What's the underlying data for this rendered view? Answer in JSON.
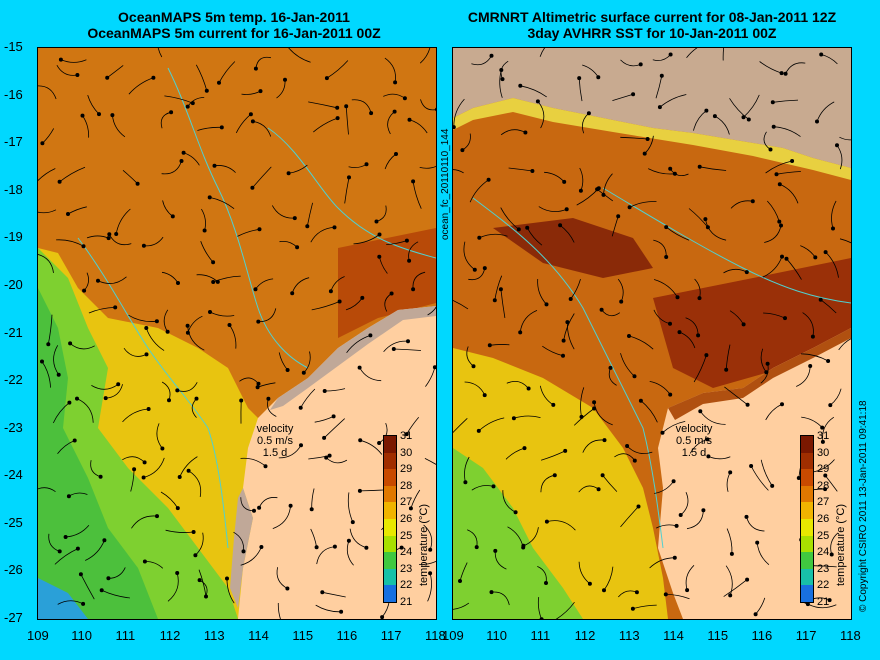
{
  "titles": {
    "left_line1": "OceanMAPS 5m temp. 16-Jan-2011",
    "left_line2": "OceanMAPS 5m current for 16-Jan-2011 00Z",
    "right_line1": "CMRNRT Altimetric surface current for 08-Jan-2011 12Z",
    "right_line2": "3day AVHRR SST for 10-Jan-2011 00Z"
  },
  "axes": {
    "lat_ticks": [
      "-15",
      "-16",
      "-17",
      "-18",
      "-19",
      "-20",
      "-21",
      "-22",
      "-23",
      "-24",
      "-25",
      "-26",
      "-27"
    ],
    "lon_ticks_left": [
      "109",
      "110",
      "111",
      "112",
      "113",
      "114",
      "115",
      "116",
      "117",
      "118"
    ],
    "lon_ticks_right": [
      "109",
      "110",
      "111",
      "112",
      "113",
      "114",
      "115",
      "116",
      "117",
      "118"
    ],
    "lon_range": [
      109,
      118
    ],
    "lat_range": [
      -27,
      -15
    ]
  },
  "legend": {
    "title": "temperature (°C)",
    "ticks": [
      "31",
      "30",
      "29",
      "28",
      "27",
      "26",
      "25",
      "24",
      "23",
      "22",
      "21"
    ],
    "colors": [
      "#7a1800",
      "#a02e00",
      "#c84a00",
      "#e07800",
      "#f0b400",
      "#e8e800",
      "#a8e000",
      "#40c840",
      "#18c0a8",
      "#1870e0",
      "#101890"
    ]
  },
  "velocity": {
    "label": "velocity",
    "speed": "0.5 m/s",
    "duration": "1.5 d"
  },
  "side_labels": {
    "file_id": "ocean_fc_20110110_144",
    "copyright": "© Copyright CSIRO 2011  13-Jan-2011 09:41:18"
  },
  "colors": {
    "background": "#00d8ff",
    "land": "#ffcfa0",
    "warm": "#d27a10",
    "hot": "#a83a08",
    "coast_grey": "#c0a898",
    "contour": "#50d0d0"
  }
}
